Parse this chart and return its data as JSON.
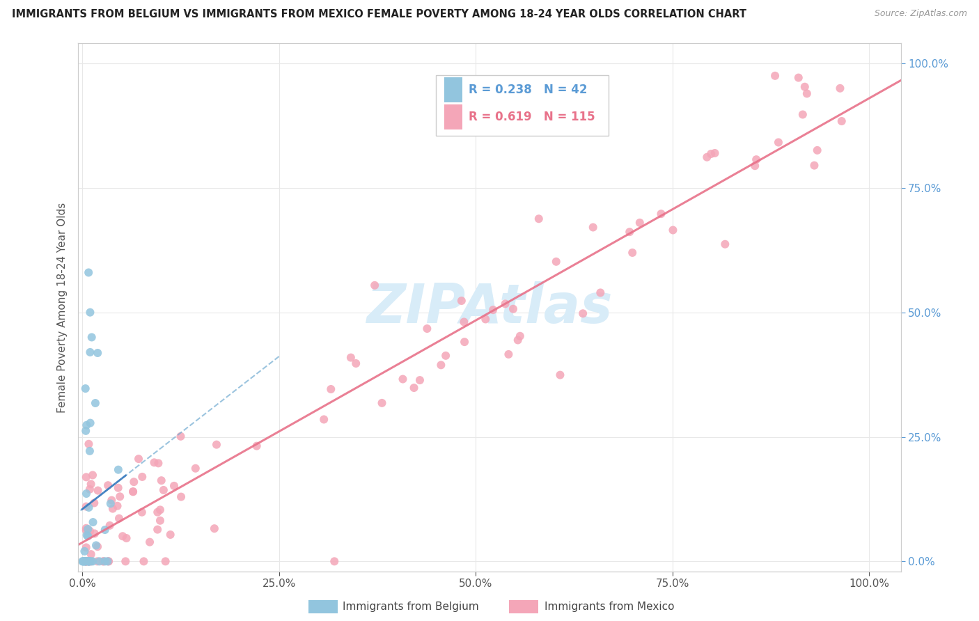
{
  "title": "IMMIGRANTS FROM BELGIUM VS IMMIGRANTS FROM MEXICO FEMALE POVERTY AMONG 18-24 YEAR OLDS CORRELATION CHART",
  "source": "Source: ZipAtlas.com",
  "ylabel": "Female Poverty Among 18-24 Year Olds",
  "r_belgium": 0.238,
  "n_belgium": 42,
  "r_mexico": 0.619,
  "n_mexico": 115,
  "color_belgium": "#92c5de",
  "color_mexico": "#f4a6b8",
  "color_trendline_belgium": "#7ab0d4",
  "color_trendline_mexico": "#e8728a",
  "watermark": "ZIPAtlas",
  "watermark_color": "#d8ecf8",
  "y_tick_color": "#5b9bd5",
  "x_tick_color": "#555555",
  "ytick_labels": [
    "0.0%",
    "25.0%",
    "50.0%",
    "75.0%",
    "100.0%"
  ],
  "ytick_vals": [
    0.0,
    0.25,
    0.5,
    0.75,
    1.0
  ],
  "xtick_labels": [
    "0.0%",
    "25.0%",
    "50.0%",
    "75.0%",
    "100.0%"
  ],
  "xtick_vals": [
    0.0,
    0.25,
    0.5,
    0.75,
    1.0
  ],
  "legend_belgium": "Immigrants from Belgium",
  "legend_mexico": "Immigrants from Mexico"
}
